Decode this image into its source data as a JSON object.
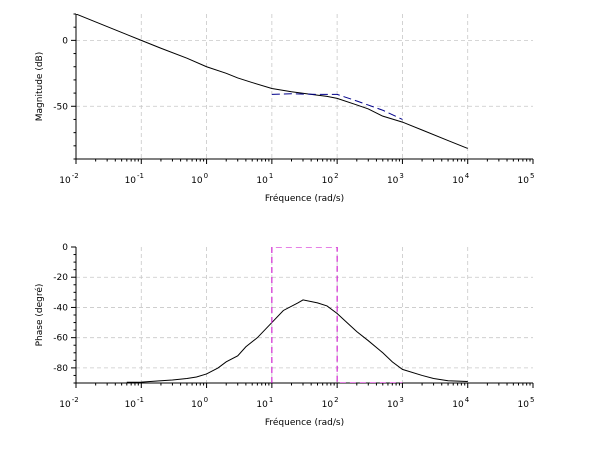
{
  "chart_data": [
    {
      "type": "line",
      "xscale": "log",
      "xlabel": "Fréquence (rad/s)",
      "ylabel": "Magnitude (dB)",
      "xlim": [
        0.01,
        100000
      ],
      "ylim": [
        -90,
        20
      ],
      "x_ticks": [
        0.01,
        0.1,
        1,
        10,
        100,
        1000,
        10000,
        100000
      ],
      "y_ticks": [
        0,
        -50
      ],
      "y_tick_labels": [
        "0",
        "-50"
      ],
      "grid": true,
      "series": [
        {
          "color": "#000000",
          "style": "solid",
          "x": [
            0.01,
            0.02,
            0.05,
            0.1,
            0.2,
            0.5,
            1,
            2,
            3,
            5,
            10,
            20,
            40,
            70,
            100,
            200,
            300,
            500,
            1000,
            2000,
            5000,
            10000
          ],
          "y": [
            20,
            14,
            6,
            0,
            -6,
            -13.5,
            -20,
            -25,
            -28.5,
            -32,
            -36.5,
            -39,
            -41,
            -42.5,
            -44,
            -49,
            -52,
            -57.5,
            -62,
            -68,
            -76,
            -82
          ]
        },
        {
          "color": "#00008b",
          "style": "dashed",
          "x": [
            10,
            20,
            50,
            100,
            200,
            500,
            1000
          ],
          "y": [
            -41,
            -40.5,
            -41,
            -41,
            -46,
            -53,
            -60
          ]
        }
      ]
    },
    {
      "type": "line",
      "xscale": "log",
      "xlabel": "Fréquence (rad/s)",
      "ylabel": "Phase (degré)",
      "xlim": [
        0.01,
        100000
      ],
      "ylim": [
        -90,
        0
      ],
      "x_ticks": [
        0.01,
        0.1,
        1,
        10,
        100,
        1000,
        10000,
        100000
      ],
      "y_ticks": [
        0,
        -20,
        -40,
        -60,
        -80
      ],
      "y_tick_labels": [
        "0",
        "-20",
        "-40",
        "-60",
        "-80"
      ],
      "grid": true,
      "series": [
        {
          "color": "#000000",
          "style": "solid",
          "x": [
            0.06,
            0.1,
            0.2,
            0.3,
            0.5,
            0.7,
            1,
            1.5,
            2,
            3,
            4,
            6,
            10,
            15,
            25,
            30,
            50,
            70,
            100,
            150,
            200,
            300,
            500,
            700,
            1000,
            2000,
            3000,
            5000,
            10000
          ],
          "y": [
            -89.5,
            -89.4,
            -88.5,
            -88,
            -87,
            -86,
            -84,
            -80,
            -76,
            -72,
            -66,
            -60,
            -50,
            -42,
            -37,
            -35,
            -37,
            -39,
            -44,
            -51,
            -56,
            -62,
            -70,
            -76,
            -81,
            -85,
            -87,
            -88.5,
            -89
          ]
        },
        {
          "color": "#cc00cc",
          "style": "dashed",
          "x": [
            10,
            10,
            100,
            100,
            1000
          ],
          "y": [
            -90,
            0,
            0,
            -90,
            -90
          ]
        }
      ]
    }
  ],
  "colors": {
    "magnitude_line": "#000000",
    "magnitude_asymptote": "#00008b",
    "phase_line": "#000000",
    "phase_box": "#cc00cc",
    "grid": "#c8c8c8"
  }
}
